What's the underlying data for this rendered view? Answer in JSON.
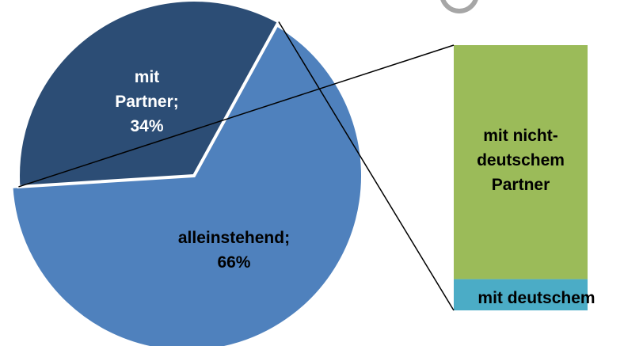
{
  "chart_data": {
    "type": "pie-of-bar",
    "categories": [
      "alleinstehend",
      "mit Partner"
    ],
    "values": [
      66,
      34
    ],
    "value_labels": [
      "alleinstehend; 66%",
      "mit Partner; 34%"
    ],
    "colors": [
      "#4f81bd",
      "#2c4d75"
    ],
    "bar": {
      "categories": [
        "mit nicht-deutschem Partner",
        "mit deutschem"
      ],
      "values": [
        30,
        4
      ],
      "colors": [
        "#9bbb59",
        "#4bacc6"
      ]
    }
  }
}
